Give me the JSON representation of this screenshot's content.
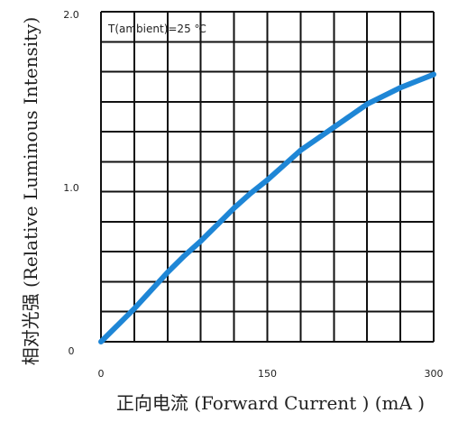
{
  "chart_data": {
    "type": "line",
    "title": "",
    "xlabel": "正向电流 (Forward Current ) (mA )",
    "ylabel": "相对光强 (Relative Luminous Intensity)",
    "xlim": [
      0,
      300
    ],
    "ylim": [
      0,
      2.0
    ],
    "x_ticks": [
      "0",
      "150",
      "300"
    ],
    "y_ticks": [
      "0",
      "1.0",
      "2.0"
    ],
    "x_tick_values": [
      0,
      150,
      300
    ],
    "y_tick_values": [
      0,
      1.0,
      2.0
    ],
    "grid": true,
    "annotation": "T(ambient)=25 ℃",
    "series": [
      {
        "color": "#1e86d6",
        "points": [
          [
            0,
            0.0
          ],
          [
            15,
            0.1
          ],
          [
            30,
            0.2
          ],
          [
            45,
            0.31
          ],
          [
            60,
            0.42
          ],
          [
            75,
            0.52
          ],
          [
            90,
            0.61
          ],
          [
            105,
            0.71
          ],
          [
            120,
            0.81
          ],
          [
            135,
            0.9
          ],
          [
            150,
            0.98
          ],
          [
            165,
            1.07
          ],
          [
            180,
            1.16
          ],
          [
            195,
            1.23
          ],
          [
            210,
            1.3
          ],
          [
            225,
            1.37
          ],
          [
            240,
            1.44
          ],
          [
            255,
            1.49
          ],
          [
            270,
            1.54
          ],
          [
            285,
            1.58
          ],
          [
            300,
            1.62
          ]
        ]
      }
    ]
  }
}
